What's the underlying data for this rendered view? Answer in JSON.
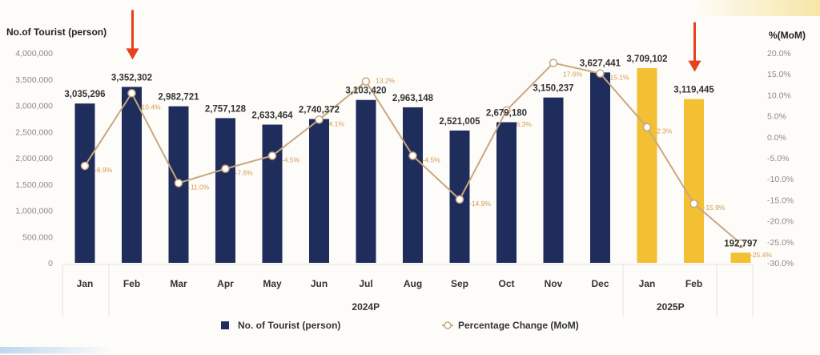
{
  "chart_data": {
    "type": "bar+line",
    "ylabel_left": "No.of Tourist (person)",
    "ylabel_right": "%(MoM)",
    "ylim_left": [
      0,
      4000000
    ],
    "ylim_right": [
      -30,
      20
    ],
    "yticks_left": [
      "4,000,000",
      "3,500,000",
      "3,000,000",
      "2,500,000",
      "2,000,000",
      "1,500,000",
      "1,000,000",
      "500,000",
      "0"
    ],
    "yticks_right": [
      "20.0%",
      "15.0%",
      "10.0%",
      "5.0%",
      "0.0%",
      "-5.0%",
      "-10.0%",
      "-15.0%",
      "-20.0%",
      "-25.0%",
      "-30.0%"
    ],
    "categories": [
      "Jan",
      "Feb",
      "Mar",
      "Apr",
      "May",
      "Jun",
      "Jul",
      "Aug",
      "Sep",
      "Oct",
      "Nov",
      "Dec",
      "Jan",
      "Feb",
      ""
    ],
    "groups": [
      {
        "label": "2024P",
        "span": [
          0,
          11
        ]
      },
      {
        "label": "2025P",
        "span": [
          12,
          13
        ]
      }
    ],
    "series": [
      {
        "name": "No. of Tourist (person)",
        "type": "bar",
        "axis": "left",
        "values": [
          3035296,
          3352302,
          2982721,
          2757128,
          2633464,
          2740372,
          3103420,
          2963148,
          2521005,
          2679180,
          3150237,
          3627441,
          3709102,
          3119445,
          192797
        ],
        "labels": [
          "3,035,296",
          "3,352,302",
          "2,982,721",
          "2,757,128",
          "2,633,464",
          "2,740,372",
          "3,103,420",
          "2,963,148",
          "2,521,005",
          "2,679,180",
          "3,150,237",
          "3,627,441",
          "3,709,102",
          "3,119,445",
          "192,797"
        ]
      },
      {
        "name": "Percentage Change (MoM)",
        "type": "line",
        "axis": "right",
        "values": [
          -6.9,
          10.4,
          -11.0,
          -7.6,
          -4.5,
          4.1,
          13.2,
          -4.5,
          -14.9,
          6.3,
          17.6,
          15.1,
          2.3,
          -15.9,
          -25.4
        ],
        "labels": [
          "-6.9%",
          "10.4%",
          "-11.0%",
          "-7.6%",
          "-4.5%",
          "4.1%",
          "13.2%",
          "-4.5%",
          "-14.9%",
          "6.3%",
          "17.6%",
          "15.1%",
          "2.3%",
          "-15.9%",
          "-25.4%"
        ]
      }
    ],
    "colors": {
      "bar_2024": "#1f2d5c",
      "bar_2025": "#f3bf33",
      "line": "#c9a77e",
      "label_pct": "#d49a50",
      "annotation_arrow": "#e8401c"
    },
    "annotations": [
      {
        "type": "arrow",
        "target_index": 1
      },
      {
        "type": "arrow",
        "target_index": 13
      }
    ],
    "legend": "bottom",
    "grid": false
  }
}
